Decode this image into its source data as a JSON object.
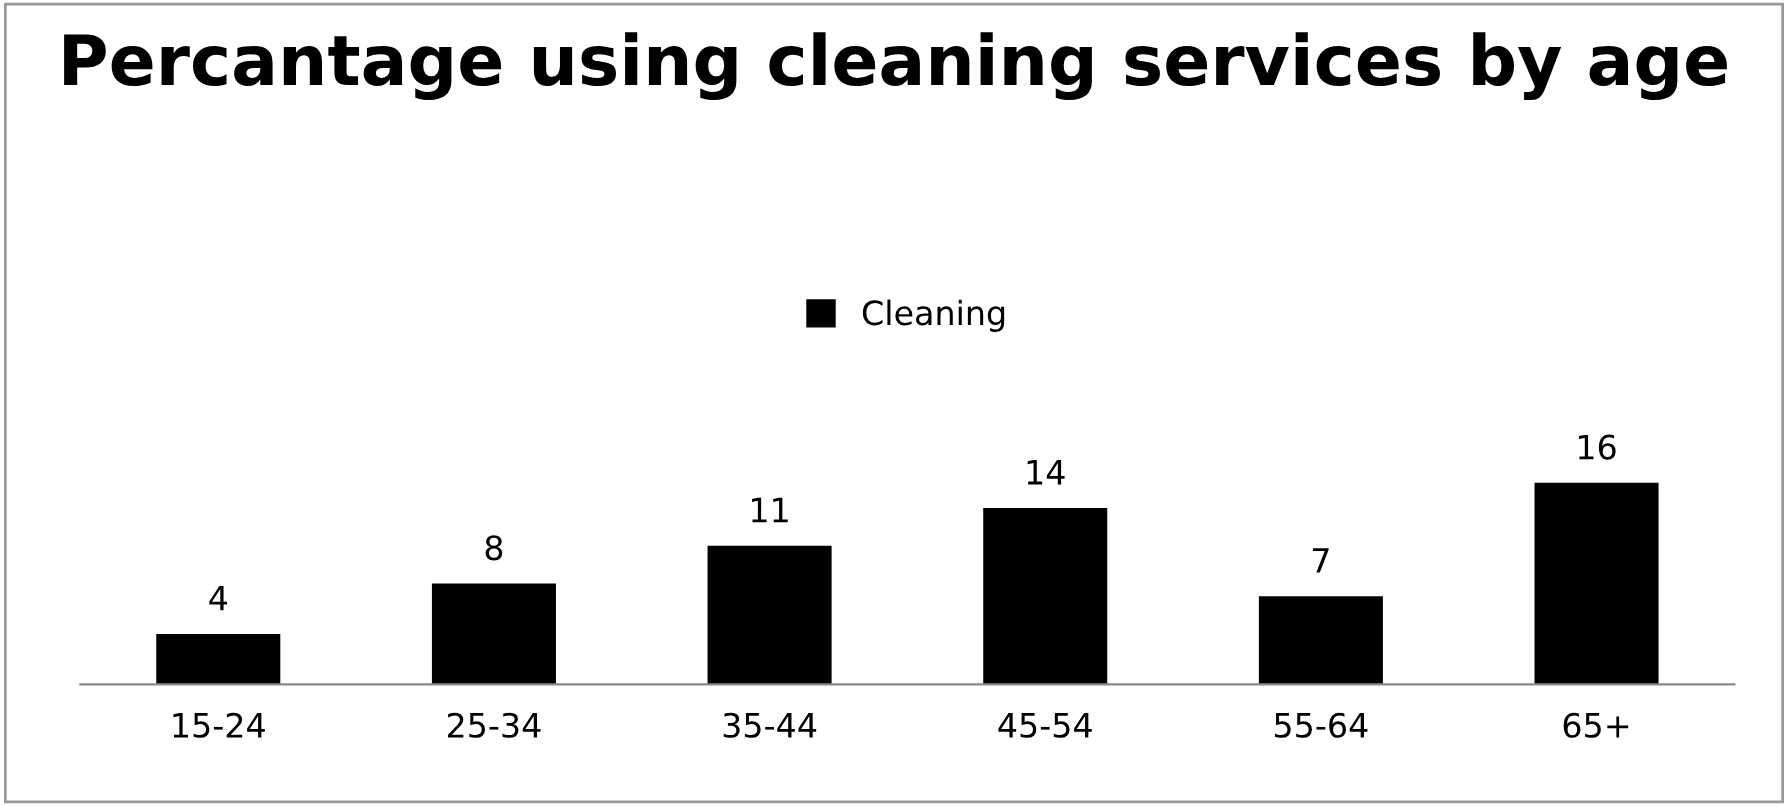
{
  "chart_data": {
    "type": "bar",
    "title": "Percantage using cleaning services by age",
    "categories": [
      "15-24",
      "25-34",
      "35-44",
      "45-54",
      "55-64",
      "65+"
    ],
    "series": [
      {
        "name": "Cleaning",
        "color": "#000000",
        "values": [
          4,
          8,
          11,
          14,
          7,
          16
        ]
      }
    ],
    "data_labels": true,
    "legend": "top",
    "grid": false,
    "tick_labels": "x"
  }
}
